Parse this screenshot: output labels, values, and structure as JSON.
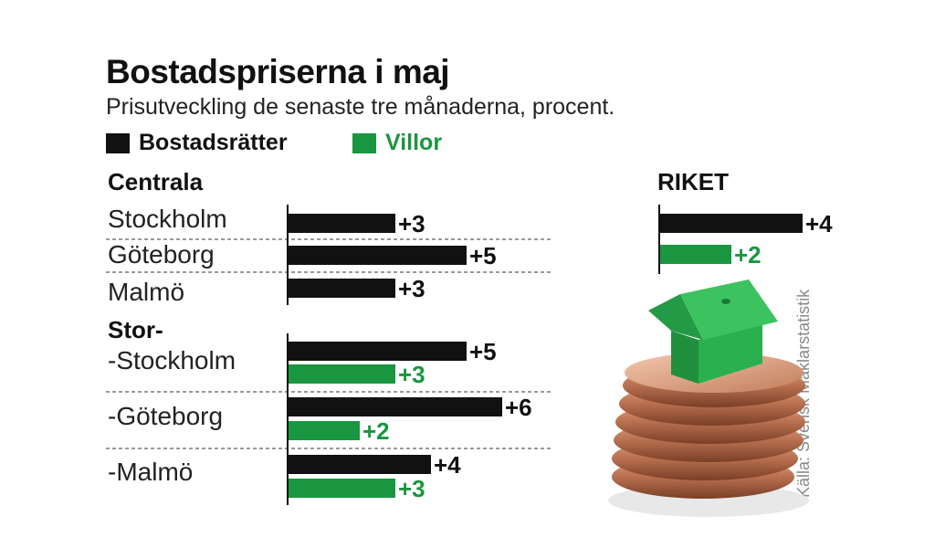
{
  "chart_data": {
    "type": "bar",
    "title": "Bostadspriserna i maj",
    "subtitle": "Prisutveckling de senaste tre månaderna, procent.",
    "legend": [
      {
        "name": "Bostadsrätter",
        "color": "#111111"
      },
      {
        "name": "Villor",
        "color": "#1a9641"
      }
    ],
    "source": "Källa: Svensk Mäklarstatistik",
    "groups": [
      {
        "label": "Centrala",
        "rows": [
          {
            "label": "Stockholm",
            "values": [
              3
            ],
            "value_labels": [
              "+3"
            ]
          },
          {
            "label": "Göteborg",
            "values": [
              5
            ],
            "value_labels": [
              "+5"
            ]
          },
          {
            "label": "Malmö",
            "values": [
              3
            ],
            "value_labels": [
              "+3"
            ]
          }
        ]
      },
      {
        "label": "Stor-",
        "rows": [
          {
            "label": "-Stockholm",
            "values": [
              5,
              3
            ],
            "value_labels": [
              "+5",
              "+3"
            ]
          },
          {
            "label": "-Göteborg",
            "values": [
              6,
              2
            ],
            "value_labels": [
              "+6",
              "+2"
            ]
          },
          {
            "label": "-Malmö",
            "values": [
              4,
              3
            ],
            "value_labels": [
              "+4",
              "+3"
            ]
          }
        ]
      }
    ],
    "riket": {
      "label": "RIKET",
      "values": [
        4,
        2
      ],
      "value_labels": [
        "+4",
        "+2"
      ]
    }
  }
}
